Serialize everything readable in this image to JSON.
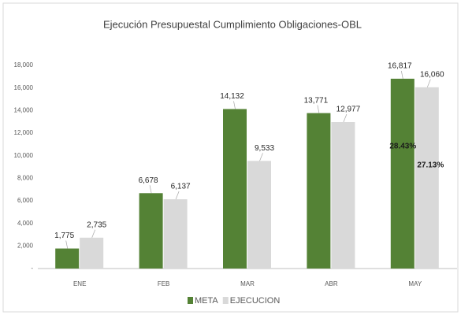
{
  "chart_data": {
    "type": "bar",
    "title": "Ejecución Presupuestal Cumplimiento Obligaciones-OBL",
    "categories": [
      "ENE",
      "FEB",
      "MAR",
      "ABR",
      "MAY"
    ],
    "series": [
      {
        "name": "META",
        "color": "#548235",
        "values": [
          1775,
          6678,
          14132,
          13771,
          16817
        ],
        "value_labels": [
          "1,775",
          "6,678",
          "14,132",
          "13,771",
          "16,817"
        ]
      },
      {
        "name": "EJECUCION",
        "color": "#d9d9d9",
        "values": [
          2735,
          6137,
          9533,
          12977,
          16060
        ],
        "value_labels": [
          "2,735",
          "6,137",
          "9,533",
          "12,977",
          "16,060"
        ]
      }
    ],
    "annotations": [
      "28.43%",
      "27.13%"
    ],
    "ylim": [
      0,
      18000
    ],
    "yticks": [
      {
        "value": 0,
        "label": "-"
      },
      {
        "value": 2000,
        "label": "2,000"
      },
      {
        "value": 4000,
        "label": "4,000"
      },
      {
        "value": 6000,
        "label": "6,000"
      },
      {
        "value": 8000,
        "label": "8,000"
      },
      {
        "value": 10000,
        "label": "10,000"
      },
      {
        "value": 12000,
        "label": "12,000"
      },
      {
        "value": 14000,
        "label": "14,000"
      },
      {
        "value": 16000,
        "label": "16,000"
      },
      {
        "value": 18000,
        "label": "18,000"
      }
    ],
    "grid": false,
    "legend": "bottom"
  }
}
